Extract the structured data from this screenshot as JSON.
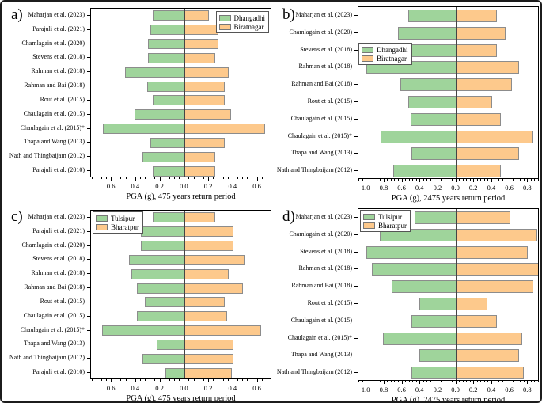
{
  "styles": {
    "background": "#ffffff",
    "figure_border": "#1c1c1c",
    "plot_border": "#000000",
    "bar_border": "#8c8c8c",
    "zero_line": "#454545",
    "green": "#9fd49b",
    "orange": "#fdc98c"
  },
  "chart_data": [
    {
      "type": "bar",
      "panel": "a)",
      "orientation": "diverging-horizontal",
      "xlabel": "PGA (g), 475 years return period",
      "xlim": [
        -0.77,
        0.72
      ],
      "x_tick_values": [
        -0.6,
        -0.4,
        -0.2,
        0.0,
        0.2,
        0.4,
        0.6
      ],
      "x_tick_labels": [
        "0.6",
        "0.4",
        "0.2",
        "0.0",
        "0.2",
        "0.4",
        "0.6"
      ],
      "minor_tick_step": 0.04,
      "grid": false,
      "legend_position": "top-right",
      "categories": [
        "Maharjan et al. (2023)",
        "Parajuli et al. (2021)",
        "Chamlagain et al. (2020)",
        "Stevens et al. (2018)",
        "Rahman et al. (2018)",
        "Rahman and Bai (2018)",
        "Rout et al. (2015)",
        "Chaulagain et al. (2015)",
        "Chaulagain et al. (2015)*",
        "Thapa and Wang (2013)",
        "Nath and Thingbaijam (2012)",
        "Parajuli et al. (2010)"
      ],
      "series": [
        {
          "name": "Dhangadhi",
          "side": "left",
          "color": "#9fd49b",
          "values": [
            0.26,
            0.28,
            0.3,
            0.3,
            0.49,
            0.31,
            0.26,
            0.41,
            0.67,
            0.28,
            0.35,
            0.26
          ]
        },
        {
          "name": "Biratnagar",
          "side": "right",
          "color": "#fdc98c",
          "values": [
            0.2,
            0.28,
            0.28,
            0.25,
            0.36,
            0.33,
            0.33,
            0.38,
            0.66,
            0.33,
            0.25,
            0.25
          ]
        }
      ]
    },
    {
      "type": "bar",
      "panel": "b)",
      "orientation": "diverging-horizontal",
      "xlabel": "PGA (g), 2475 years return period",
      "xlim": [
        -1.09,
        0.93
      ],
      "x_tick_values": [
        -1.0,
        -0.8,
        -0.6,
        -0.4,
        -0.2,
        0.0,
        0.2,
        0.4,
        0.6,
        0.8
      ],
      "x_tick_labels": [
        "1.0",
        "0.8",
        "0.6",
        "0.4",
        "0.2",
        "0.0",
        "0.2",
        "0.4",
        "0.6",
        "0.8"
      ],
      "minor_tick_step": 0.04,
      "grid": false,
      "legend_position": "left-middle",
      "categories": [
        "Maharjan et al. (2023)",
        "Chamlagain et al. (2020)",
        "Stevens et al. (2018)",
        "Rahman et al. (2018)",
        "Rahman and Bai (2018)",
        "Rout et al. (2015)",
        "Chaulagain et al. (2015)",
        "Chaulagain et al. (2015)*",
        "Thapa and Wang (2013)",
        "Nath and Thingbaijam (2012)"
      ],
      "series": [
        {
          "name": "Dhangadhi",
          "side": "left",
          "color": "#9fd49b",
          "values": [
            0.53,
            0.65,
            0.55,
            1.0,
            0.62,
            0.53,
            0.51,
            0.84,
            0.5,
            0.7
          ]
        },
        {
          "name": "Biratnagar",
          "side": "right",
          "color": "#fdc98c",
          "values": [
            0.45,
            0.55,
            0.45,
            0.7,
            0.62,
            0.4,
            0.5,
            0.85,
            0.7,
            0.5
          ]
        }
      ]
    },
    {
      "type": "bar",
      "panel": "c)",
      "orientation": "diverging-horizontal",
      "xlabel": "PGA (g), 475 years return period",
      "xlim": [
        -0.77,
        0.72
      ],
      "x_tick_values": [
        -0.6,
        -0.4,
        -0.2,
        0.0,
        0.2,
        0.4,
        0.6
      ],
      "x_tick_labels": [
        "0.6",
        "0.4",
        "0.2",
        "0.0",
        "0.2",
        "0.4",
        "0.6"
      ],
      "minor_tick_step": 0.04,
      "grid": false,
      "legend_position": "top-left",
      "categories": [
        "Maharjan et al. (2023)",
        "Parajuli et al. (2021)",
        "Chamlagain et al. (2020)",
        "Stevens et al. (2018)",
        "Rahman et al. (2018)",
        "Rahman and Bai (2018)",
        "Rout et al. (2015)",
        "Chaulagain et al. (2015)",
        "Chaulagain et al. (2015)*",
        "Thapa and Wang (2013)",
        "Nath and Thingbaijam (2012)",
        "Parajuli et al. (2010)"
      ],
      "series": [
        {
          "name": "Tulsipur",
          "side": "left",
          "color": "#9fd49b",
          "values": [
            0.26,
            0.36,
            0.36,
            0.46,
            0.44,
            0.39,
            0.33,
            0.39,
            0.68,
            0.23,
            0.35,
            0.16
          ]
        },
        {
          "name": "Bharatpur",
          "side": "right",
          "color": "#fdc98c",
          "values": [
            0.25,
            0.4,
            0.4,
            0.5,
            0.36,
            0.48,
            0.33,
            0.35,
            0.63,
            0.4,
            0.4,
            0.39
          ]
        }
      ]
    },
    {
      "type": "bar",
      "panel": "d)",
      "orientation": "diverging-horizontal",
      "xlabel": "PGA (g), 2475 years return period",
      "xlim": [
        -1.09,
        0.93
      ],
      "x_tick_values": [
        -1.0,
        -0.8,
        -0.6,
        -0.4,
        -0.2,
        0.0,
        0.2,
        0.4,
        0.6,
        0.8
      ],
      "x_tick_labels": [
        "1.0",
        "0.8",
        "0.6",
        "0.4",
        "0.2",
        "0.0",
        "0.2",
        "0.4",
        "0.6",
        "0.8"
      ],
      "minor_tick_step": 0.04,
      "grid": false,
      "legend_position": "top-left",
      "categories": [
        "Maharjan et al. (2023)",
        "Chamlagain et al. (2020)",
        "Stevens et al. (2018)",
        "Rahman et al. (2018)",
        "Rahman and Bai (2018)",
        "Rout et al. (2015)",
        "Chaulagain et al. (2015)",
        "Chaulagain et al. (2015)*",
        "Thapa and Wang (2013)",
        "Nath and Thingbaijam (2012)"
      ],
      "series": [
        {
          "name": "Tulsipur",
          "side": "left",
          "color": "#9fd49b",
          "values": [
            0.46,
            0.85,
            1.0,
            0.94,
            0.72,
            0.41,
            0.5,
            0.82,
            0.41,
            0.5
          ]
        },
        {
          "name": "Bharatpur",
          "side": "right",
          "color": "#fdc98c",
          "values": [
            0.6,
            0.9,
            0.8,
            0.93,
            0.86,
            0.35,
            0.45,
            0.74,
            0.7,
            0.75
          ]
        }
      ]
    }
  ]
}
